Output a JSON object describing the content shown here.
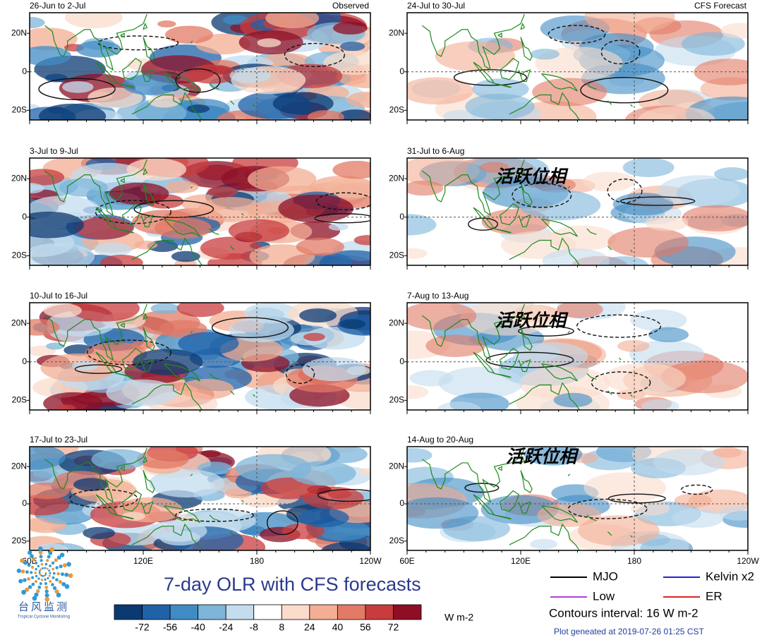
{
  "panels": [
    {
      "title": "26-Jun to 2-Jul",
      "tag": "Observed"
    },
    {
      "title": "24-Jul to 30-Jul",
      "tag": "CFS Forecast"
    },
    {
      "title": "3-Jul to 9-Jul"
    },
    {
      "title": "31-Jul to 6-Aug",
      "annotation": "活跃位相"
    },
    {
      "title": "10-Jul to 16-Jul"
    },
    {
      "title": "7-Aug to 13-Aug",
      "annotation": "活跃位相"
    },
    {
      "title": "17-Jul to 23-Jul"
    },
    {
      "title": "14-Aug to 20-Aug",
      "annotation": "活跃位相"
    }
  ],
  "lat_labels": [
    "20N",
    "0",
    "20S"
  ],
  "lon_labels": [
    "60E",
    "120E",
    "180",
    "120W"
  ],
  "title": "7-day OLR with CFS forecasts",
  "colorbar": {
    "labels": [
      -72,
      -56,
      -40,
      -24,
      -8,
      8,
      24,
      40,
      56,
      72
    ],
    "colors": [
      "#0b3a73",
      "#1f62a8",
      "#3f8cc4",
      "#7db5da",
      "#c3dcee",
      "#ffffff",
      "#fadccb",
      "#f3ae93",
      "#e27a66",
      "#c83c3e",
      "#8e0f25"
    ],
    "unit": "W m-2"
  },
  "legend": [
    {
      "name": "MJO",
      "color": "#000000"
    },
    {
      "name": "Kelvin x2",
      "color": "#2222dd"
    },
    {
      "name": "Low",
      "color": "#b040d8"
    },
    {
      "name": "ER",
      "color": "#dd2222"
    }
  ],
  "contour_note": "Contours interval: 16 W m-2",
  "footer": "Plot geneated at 2019-07-26 01:25 CST",
  "logo": {
    "name": "台风监测",
    "subtitle": "Tropical Cyclone Monitoring"
  }
}
